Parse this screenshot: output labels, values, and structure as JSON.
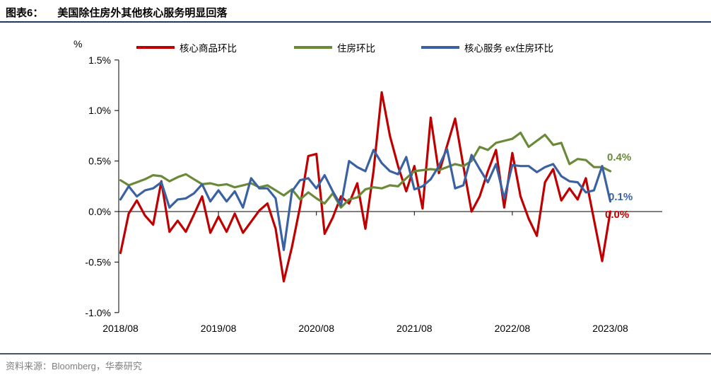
{
  "header": {
    "fig_label": "图表6：",
    "title": "美国除住房外其他核心服务明显回落"
  },
  "unit_label": "%",
  "footer": {
    "source": "资料来源：Bloomberg，华泰研究"
  },
  "chart_data": {
    "type": "line",
    "title": "美国除住房外其他核心服务明显回落",
    "x_start": "2018/08",
    "x_end": "2023/08",
    "x_frequency": "monthly",
    "n_points": 61,
    "x_tick_labels": [
      "2018/08",
      "2019/08",
      "2020/08",
      "2021/08",
      "2022/08",
      "2023/08"
    ],
    "months_per_tick": 12,
    "ylim": [
      -1.0,
      1.5
    ],
    "y_ticks": [
      1.5,
      1.0,
      0.5,
      0.0,
      -0.5,
      -1.0
    ],
    "y_tick_labels": [
      "1.5%",
      "1.0%",
      "0.5%",
      "0.0%",
      "-0.5%",
      "-1.0%"
    ],
    "grid": false,
    "legend_position": "top",
    "series": [
      {
        "name": "核心商品环比",
        "color": "#C00000",
        "values": [
          -0.41,
          -0.02,
          0.11,
          -0.04,
          -0.13,
          0.3,
          -0.2,
          -0.09,
          -0.2,
          -0.03,
          0.15,
          -0.21,
          -0.05,
          -0.2,
          -0.02,
          -0.21,
          -0.1,
          0.01,
          0.08,
          -0.17,
          -0.69,
          -0.35,
          0.05,
          0.55,
          0.57,
          -0.22,
          -0.06,
          0.15,
          0.08,
          0.28,
          -0.17,
          0.4,
          1.18,
          0.75,
          0.45,
          0.2,
          0.45,
          0.03,
          0.93,
          0.38,
          0.65,
          0.92,
          0.45,
          0.0,
          0.15,
          0.4,
          0.61,
          0.04,
          0.58,
          0.15,
          -0.07,
          -0.24,
          0.29,
          0.42,
          0.11,
          0.23,
          0.12,
          0.33,
          -0.08,
          -0.49,
          0.0
        ]
      },
      {
        "name": "住房环比",
        "color": "#6A8A3A",
        "values": [
          0.31,
          0.26,
          0.29,
          0.32,
          0.36,
          0.35,
          0.3,
          0.34,
          0.37,
          0.32,
          0.27,
          0.28,
          0.26,
          0.27,
          0.24,
          0.26,
          0.28,
          0.24,
          0.26,
          0.21,
          0.16,
          0.22,
          0.12,
          0.19,
          0.13,
          0.08,
          0.18,
          0.04,
          0.12,
          0.14,
          0.22,
          0.24,
          0.23,
          0.26,
          0.25,
          0.33,
          0.4,
          0.41,
          0.42,
          0.41,
          0.44,
          0.47,
          0.45,
          0.5,
          0.64,
          0.61,
          0.68,
          0.7,
          0.72,
          0.78,
          0.64,
          0.7,
          0.76,
          0.66,
          0.68,
          0.47,
          0.52,
          0.51,
          0.44,
          0.44,
          0.4
        ]
      },
      {
        "name": "核心服务 ex住房环比",
        "color": "#3A62A3",
        "values": [
          0.12,
          0.25,
          0.15,
          0.21,
          0.23,
          0.29,
          0.04,
          0.12,
          0.13,
          0.18,
          0.27,
          0.1,
          0.21,
          0.1,
          0.2,
          0.04,
          0.33,
          0.23,
          0.23,
          0.13,
          -0.38,
          0.2,
          0.31,
          0.33,
          0.23,
          0.36,
          0.2,
          0.06,
          0.5,
          0.44,
          0.4,
          0.61,
          0.48,
          0.4,
          0.37,
          0.54,
          0.22,
          0.25,
          0.32,
          0.45,
          0.62,
          0.23,
          0.26,
          0.56,
          0.42,
          0.29,
          0.47,
          0.13,
          0.46,
          0.45,
          0.45,
          0.39,
          0.44,
          0.47,
          0.35,
          0.3,
          0.29,
          0.19,
          0.21,
          0.45,
          0.1
        ]
      }
    ],
    "end_labels": [
      {
        "text": "0.4%",
        "series": "住房环比",
        "color": "#6A8A3A"
      },
      {
        "text": "0.1%",
        "series": "核心服务 ex住房环比",
        "color": "#3A62A3"
      },
      {
        "text": "0.0%",
        "series": "核心商品环比",
        "color": "#C00000"
      }
    ]
  }
}
